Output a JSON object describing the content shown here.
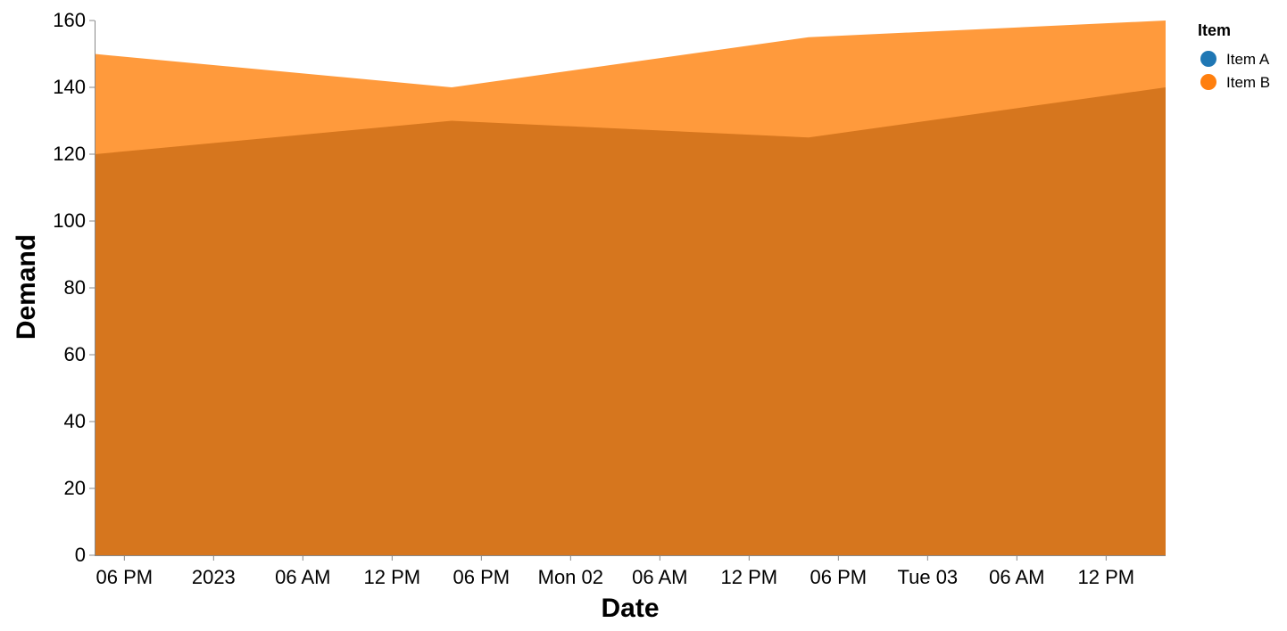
{
  "chart_data": {
    "type": "area",
    "stacked": false,
    "xlabel": "Date",
    "ylabel": "Demand",
    "x": [
      "2022-12-31T16:00",
      "2023-01-01T16:00",
      "2023-01-02T16:00",
      "2023-01-03T16:00"
    ],
    "series": [
      {
        "name": "Item A",
        "color": "#1f77b4",
        "values": [
          120,
          130,
          125,
          140
        ]
      },
      {
        "name": "Item B",
        "color": "#ff7f0e",
        "values": [
          150,
          140,
          155,
          160
        ]
      }
    ],
    "ylim": [
      0,
      160
    ],
    "yticks": [
      0,
      20,
      40,
      60,
      80,
      100,
      120,
      140,
      160
    ],
    "xlim": [
      "2022-12-31T16:00",
      "2023-01-03T16:00"
    ],
    "xticks": [
      {
        "t": "2022-12-31T18:00",
        "label": "06 PM"
      },
      {
        "t": "2023-01-01T00:00",
        "label": "2023"
      },
      {
        "t": "2023-01-01T06:00",
        "label": "06 AM"
      },
      {
        "t": "2023-01-01T12:00",
        "label": "12 PM"
      },
      {
        "t": "2023-01-01T18:00",
        "label": "06 PM"
      },
      {
        "t": "2023-01-02T00:00",
        "label": "Mon 02"
      },
      {
        "t": "2023-01-02T06:00",
        "label": "06 AM"
      },
      {
        "t": "2023-01-02T12:00",
        "label": "12 PM"
      },
      {
        "t": "2023-01-02T18:00",
        "label": "06 PM"
      },
      {
        "t": "2023-01-03T00:00",
        "label": "Tue 03"
      },
      {
        "t": "2023-01-03T06:00",
        "label": "06 AM"
      },
      {
        "t": "2023-01-03T12:00",
        "label": "12 PM"
      }
    ],
    "legend": {
      "title": "Item",
      "position": "top-right"
    },
    "grid": false
  }
}
